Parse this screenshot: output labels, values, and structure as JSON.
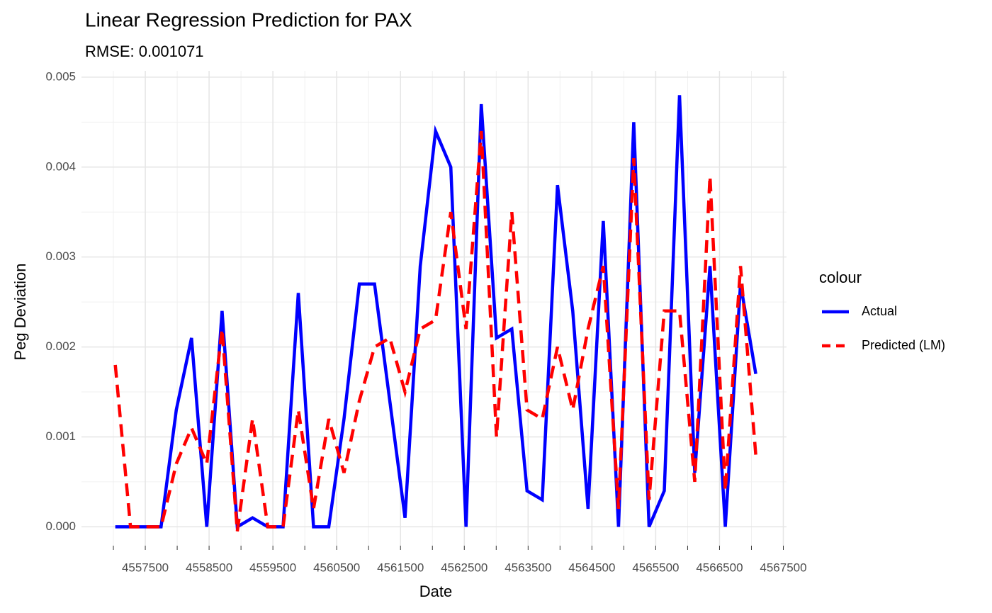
{
  "chart_data": {
    "type": "line",
    "title": "Linear Regression Prediction for PAX",
    "subtitle": "RMSE: 0.001071",
    "x_label": "Date",
    "y_label": "Peg Deviation",
    "legend_title": "colour",
    "legend_position": "right",
    "grid": true,
    "x": [
      4557030,
      4557269,
      4557508,
      4557747,
      4557986,
      4558225,
      4558464,
      4558703,
      4558942,
      4559181,
      4559420,
      4559659,
      4559898,
      4560137,
      4560376,
      4560615,
      4560854,
      4561093,
      4561332,
      4561571,
      4561810,
      4562049,
      4562288,
      4562527,
      4562766,
      4563005,
      4563244,
      4563483,
      4563722,
      4563961,
      4564200,
      4564439,
      4564678,
      4564917,
      4565156,
      4565395,
      4565634,
      4565873,
      4566112,
      4566351,
      4566590,
      4566829,
      4567068
    ],
    "series": [
      {
        "name": "Actual",
        "color": "#0000ff",
        "dash": "solid",
        "values": [
          0,
          0,
          0,
          0,
          0.0013,
          0.0021,
          0,
          0.0024,
          0,
          0.0001,
          0,
          0,
          0.0026,
          0,
          0,
          0.0012,
          0.0027,
          0.0027,
          0.0014,
          0.0001,
          0.0029,
          0.0044,
          0.004,
          0,
          0.0047,
          0.0021,
          0.0022,
          0.0004,
          0.0003,
          0.0038,
          0.0024,
          0.0002,
          0.0034,
          0,
          0.0045,
          0,
          0.0004,
          0.0048,
          0.0006,
          0.0029,
          0,
          0.0027,
          0.0017
        ]
      },
      {
        "name": "Predicted (LM)",
        "color": "#ff0000",
        "dash": "dashed",
        "values": [
          0.0018,
          0,
          0,
          0,
          0.0007,
          0.0011,
          0.0007,
          0.0022,
          -5e-05,
          0.0012,
          0,
          0,
          0.0013,
          0.0002,
          0.0012,
          0.0006,
          0.0014,
          0.002,
          0.0021,
          0.0015,
          0.0022,
          0.0023,
          0.0035,
          0.0022,
          0.0044,
          0.001,
          0.0035,
          0.0013,
          0.0012,
          0.002,
          0.0013,
          0.0022,
          0.0029,
          0.0002,
          0.0041,
          0.0003,
          0.0024,
          0.0024,
          0.0005,
          0.0039,
          0.0004,
          0.0029,
          0.0008
        ]
      }
    ],
    "xlim": [
      4556500,
      4567550
    ],
    "xticks": [
      4557500,
      4558500,
      4559500,
      4560500,
      4561500,
      4562500,
      4563500,
      4564500,
      4565500,
      4566500,
      4567500
    ],
    "ylim": [
      -0.00021,
      0.00507
    ],
    "yticks": [
      {
        "value": 0,
        "label": "0.000"
      },
      0.001,
      0.002,
      0.003,
      0.004,
      0.005
    ]
  }
}
